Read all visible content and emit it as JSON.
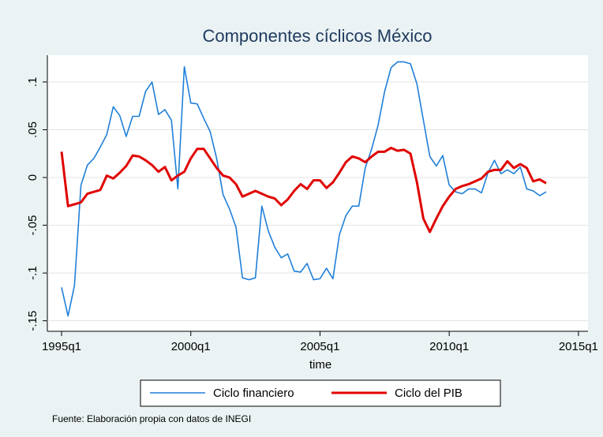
{
  "chart_data": {
    "type": "line",
    "title": "Componentes cíclicos México",
    "x_label": "time",
    "note": "Fuente: Elaboración propia con datos de INEGI",
    "x": [
      1995,
      1995.25,
      1995.5,
      1995.75,
      1996,
      1996.25,
      1996.5,
      1996.75,
      1997,
      1997.25,
      1997.5,
      1997.75,
      1998,
      1998.25,
      1998.5,
      1998.75,
      1999,
      1999.25,
      1999.5,
      1999.75,
      2000,
      2000.25,
      2000.5,
      2000.75,
      2001,
      2001.25,
      2001.5,
      2001.75,
      2002,
      2002.25,
      2002.5,
      2002.75,
      2003,
      2003.25,
      2003.5,
      2003.75,
      2004,
      2004.25,
      2004.5,
      2004.75,
      2005,
      2005.25,
      2005.5,
      2005.75,
      2006,
      2006.25,
      2006.5,
      2006.75,
      2007,
      2007.25,
      2007.5,
      2007.75,
      2008,
      2008.25,
      2008.5,
      2008.75,
      2009,
      2009.25,
      2009.5,
      2009.75,
      2010,
      2010.25,
      2010.5,
      2010.75,
      2011,
      2011.25,
      2011.5,
      2011.75,
      2012,
      2012.25,
      2012.5,
      2012.75,
      2013,
      2013.25,
      2013.5,
      2013.75
    ],
    "series": [
      {
        "name": "Ciclo financiero",
        "color": "#1f7fd8",
        "values": [
          -0.115,
          -0.145,
          -0.113,
          -0.008,
          0.013,
          0.02,
          0.032,
          0.045,
          0.074,
          0.065,
          0.043,
          0.064,
          0.064,
          0.09,
          0.1,
          0.066,
          0.071,
          0.06,
          -0.012,
          0.116,
          0.078,
          0.077,
          0.062,
          0.048,
          0.02,
          -0.018,
          -0.033,
          -0.052,
          -0.105,
          -0.107,
          -0.105,
          -0.03,
          -0.056,
          -0.073,
          -0.084,
          -0.08,
          -0.098,
          -0.099,
          -0.09,
          -0.107,
          -0.106,
          -0.095,
          -0.106,
          -0.06,
          -0.04,
          -0.03,
          -0.03,
          0.01,
          0.03,
          0.055,
          0.09,
          0.115,
          0.121,
          0.121,
          0.119,
          0.098,
          0.06,
          0.022,
          0.012,
          0.023,
          -0.008,
          -0.015,
          -0.017,
          -0.012,
          -0.012,
          -0.016,
          0.005,
          0.018,
          0.004,
          0.008,
          0.004,
          0.011,
          -0.012,
          -0.014,
          -0.019,
          -0.015
        ]
      },
      {
        "name": "Ciclo del PIB",
        "color": "#e00000",
        "values": [
          0.027,
          -0.03,
          -0.028,
          -0.026,
          -0.017,
          -0.015,
          -0.013,
          0.002,
          -0.001,
          0.005,
          0.012,
          0.023,
          0.022,
          0.018,
          0.013,
          0.006,
          0.011,
          -0.003,
          0.002,
          0.006,
          0.02,
          0.03,
          0.03,
          0.02,
          0.01,
          0.002,
          0.0,
          -0.007,
          -0.02,
          -0.017,
          -0.014,
          -0.017,
          -0.02,
          -0.022,
          -0.029,
          -0.023,
          -0.014,
          -0.007,
          -0.012,
          -0.003,
          -0.003,
          -0.011,
          -0.005,
          0.005,
          0.016,
          0.022,
          0.02,
          0.016,
          0.022,
          0.027,
          0.027,
          0.031,
          0.028,
          0.029,
          0.025,
          -0.005,
          -0.043,
          -0.057,
          -0.043,
          -0.03,
          -0.02,
          -0.012,
          -0.009,
          -0.007,
          -0.004,
          -0.001,
          0.006,
          0.008,
          0.008,
          0.017,
          0.01,
          0.014,
          0.01,
          -0.004,
          -0.002,
          -0.006
        ]
      }
    ],
    "xlim": [
      1994.45,
      2015.37
    ],
    "xticks": [
      {
        "value": 1995,
        "label": "1995q1"
      },
      {
        "value": 2000,
        "label": "2000q1"
      },
      {
        "value": 2005,
        "label": "2005q1"
      },
      {
        "value": 2010,
        "label": "2010q1"
      },
      {
        "value": 2015,
        "label": "2015q1"
      }
    ],
    "ylim": [
      -0.161,
      0.128
    ],
    "yticks": [
      {
        "value": -0.15,
        "label": "-.15"
      },
      {
        "value": -0.1,
        "label": "-.1"
      },
      {
        "value": -0.05,
        "label": "-.05"
      },
      0,
      {
        "value": 0.05,
        "label": ".05"
      },
      {
        "value": 0.1,
        "label": ".1"
      }
    ],
    "grid": true
  }
}
